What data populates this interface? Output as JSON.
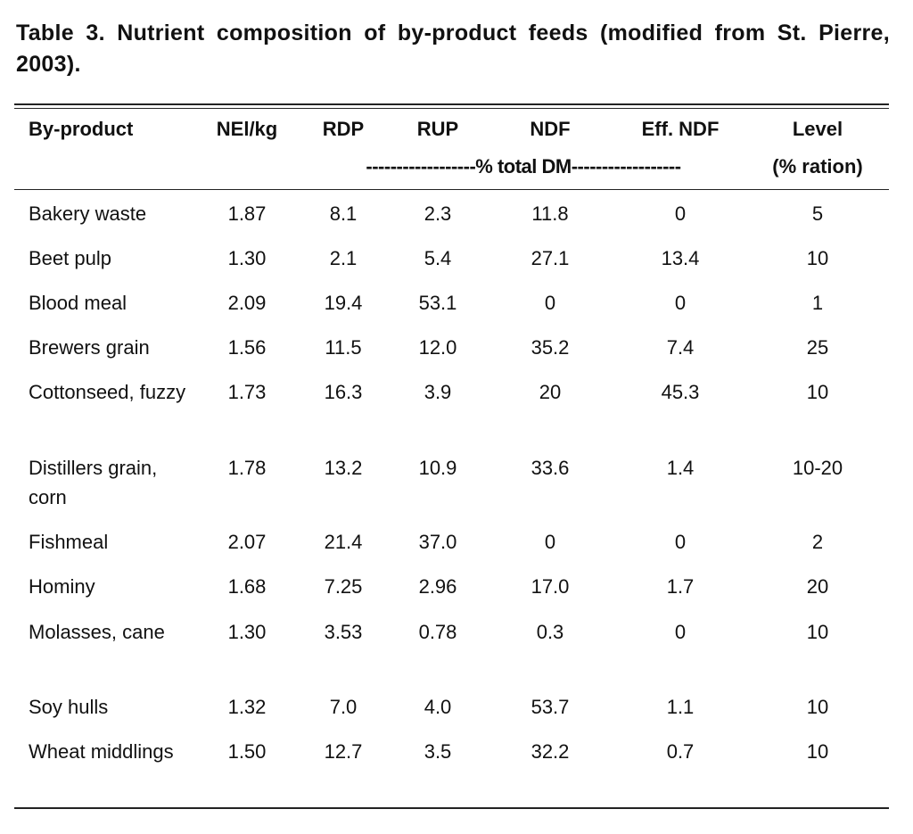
{
  "caption": "Table 3.  Nutrient composition of by-product feeds (modified from St. Pierre, 2003).",
  "headers": {
    "byproduct": "By-product",
    "nel": "NEl/kg",
    "rdp": "RDP",
    "rup": "RUP",
    "ndf": "NDF",
    "effndf": "Eff. NDF",
    "level": "Level",
    "dm_span": "------------------% total DM------------------",
    "level_unit": "(% ration)"
  },
  "rows": [
    {
      "name": "Bakery waste",
      "nel": "1.87",
      "rdp": "8.1",
      "rup": "2.3",
      "ndf": "11.8",
      "effndf": "0",
      "level": "5"
    },
    {
      "name": "Beet pulp",
      "nel": "1.30",
      "rdp": "2.1",
      "rup": "5.4",
      "ndf": "27.1",
      "effndf": "13.4",
      "level": "10"
    },
    {
      "name": "Blood meal",
      "nel": "2.09",
      "rdp": "19.4",
      "rup": "53.1",
      "ndf": "0",
      "effndf": "0",
      "level": "1"
    },
    {
      "name": "Brewers grain",
      "nel": "1.56",
      "rdp": "11.5",
      "rup": "12.0",
      "ndf": "35.2",
      "effndf": "7.4",
      "level": "25"
    },
    {
      "name": "Cottonseed, fuzzy",
      "nel": "1.73",
      "rdp": "16.3",
      "rup": "3.9",
      "ndf": "20",
      "effndf": "45.3",
      "level": "10"
    },
    {
      "name": "Distillers grain, corn",
      "nel": "1.78",
      "rdp": "13.2",
      "rup": "10.9",
      "ndf": "33.6",
      "effndf": "1.4",
      "level": "10-20"
    },
    {
      "name": "Fishmeal",
      "nel": "2.07",
      "rdp": "21.4",
      "rup": "37.0",
      "ndf": "0",
      "effndf": "0",
      "level": "2"
    },
    {
      "name": "Hominy",
      "nel": "1.68",
      "rdp": "7.25",
      "rup": "2.96",
      "ndf": "17.0",
      "effndf": "1.7",
      "level": "20"
    },
    {
      "name": "Molasses, cane",
      "nel": "1.30",
      "rdp": "3.53",
      "rup": "0.78",
      "ndf": "0.3",
      "effndf": "0",
      "level": "10"
    },
    {
      "name": "Soy hulls",
      "nel": "1.32",
      "rdp": "7.0",
      "rup": "4.0",
      "ndf": "53.7",
      "effndf": "1.1",
      "level": "10"
    },
    {
      "name": "Wheat middlings",
      "nel": "1.50",
      "rdp": "12.7",
      "rup": "3.5",
      "ndf": "32.2",
      "effndf": "0.7",
      "level": "10"
    }
  ]
}
